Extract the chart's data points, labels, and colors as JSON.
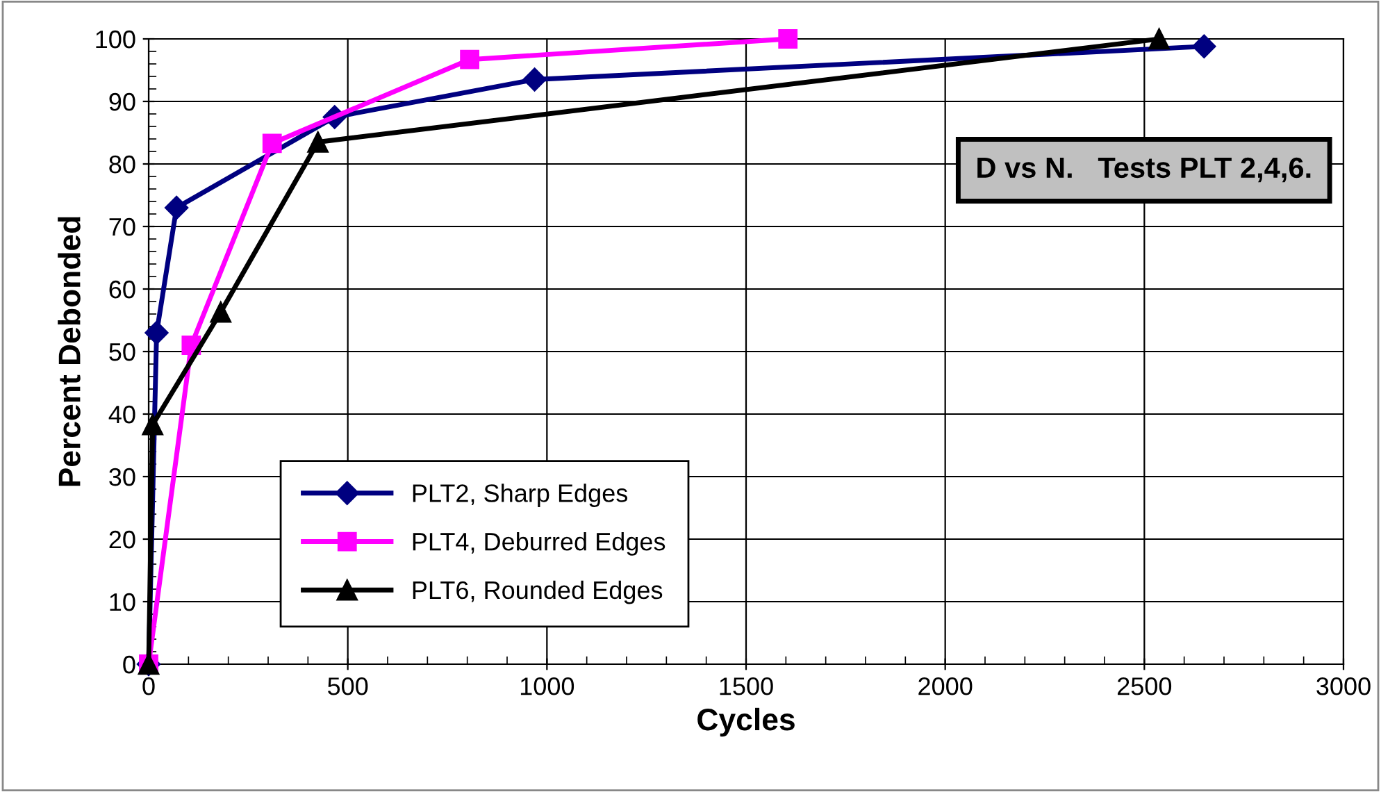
{
  "chart_data": {
    "type": "line",
    "xlabel": "Cycles",
    "ylabel": "Percent Debonded",
    "annotations": [
      "D vs N.   Tests PLT 2,4,6."
    ],
    "series": [
      {
        "name": "PLT2, Sharp Edges",
        "color": "#000080",
        "marker": "diamond",
        "x": [
          0,
          20,
          70,
          467,
          969,
          2650
        ],
        "values": [
          0,
          53,
          73,
          87.5,
          93.5,
          98.8
        ]
      },
      {
        "name": "PLT4, Deburred Edges",
        "color": "#ff00ff",
        "marker": "square",
        "x": [
          0,
          107,
          310,
          806,
          1605
        ],
        "values": [
          0,
          51,
          83.3,
          96.7,
          100
        ]
      },
      {
        "name": "PLT6, Rounded Edges",
        "color": "#000000",
        "marker": "triangle",
        "x": [
          0,
          10,
          181,
          425,
          2537
        ],
        "values": [
          0,
          38.3,
          56.3,
          83.5,
          100
        ]
      }
    ],
    "xlim": [
      0,
      3000
    ],
    "xticks": [
      0,
      500,
      1000,
      1500,
      2000,
      2500,
      3000
    ],
    "ylim": [
      0,
      100
    ],
    "yticks": [
      0,
      10,
      20,
      30,
      40,
      50,
      60,
      70,
      80,
      90,
      100
    ],
    "grid": true,
    "legend": "bottom left",
    "line_style": "solid"
  }
}
